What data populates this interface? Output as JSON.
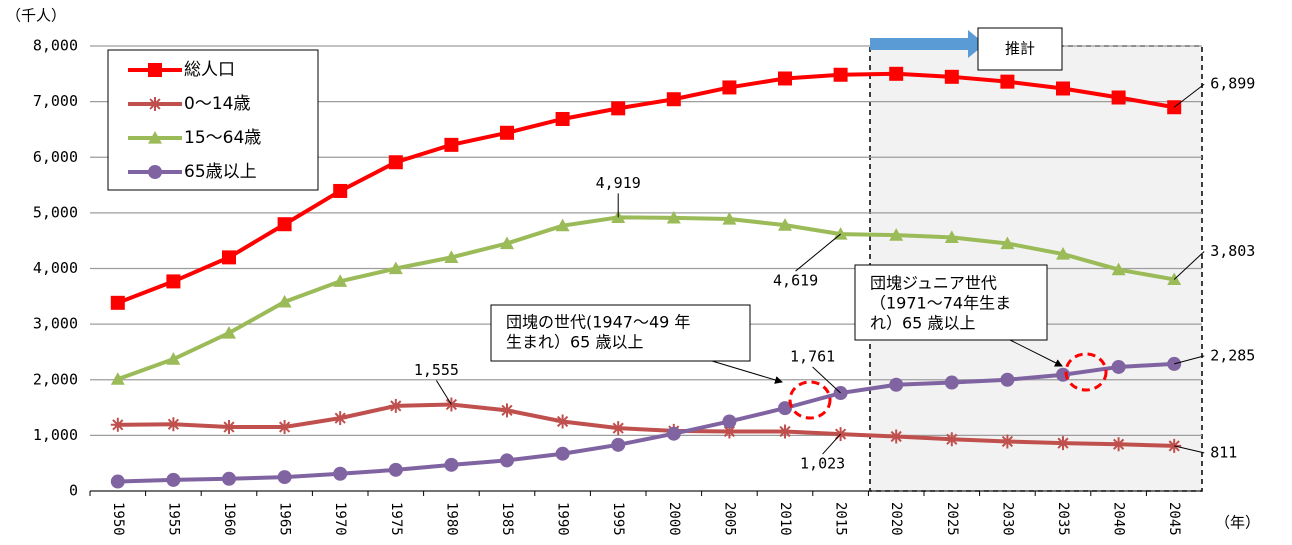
{
  "chart_data": {
    "type": "line",
    "y_label": "（千人）",
    "x_label": "（年）",
    "categories": [
      "1950",
      "1955",
      "1960",
      "1965",
      "1970",
      "1975",
      "1980",
      "1985",
      "1990",
      "1995",
      "2000",
      "2005",
      "2010",
      "2015",
      "2020",
      "2025",
      "2030",
      "2035",
      "2040",
      "2045"
    ],
    "ylim": [
      0,
      8000
    ],
    "yticks": [
      0,
      {
        "value": 1000,
        "label": "1,000"
      },
      {
        "value": 2000,
        "label": "2,000"
      },
      {
        "value": 3000,
        "label": "3,000"
      },
      {
        "value": 4000,
        "label": "4,000"
      },
      {
        "value": 5000,
        "label": "5,000"
      },
      {
        "value": 6000,
        "label": "6,000"
      },
      {
        "value": 7000,
        "label": "7,000"
      },
      {
        "value": 8000,
        "label": "8,000"
      }
    ],
    "grid": true,
    "legend": "upper left",
    "series": [
      {
        "name": "総人口",
        "color": "#ff0000",
        "marker": "square",
        "values": [
          3383,
          3768,
          4200,
          4796,
          5394,
          5910,
          6223,
          6440,
          6688,
          6879,
          7043,
          7255,
          7416,
          7483,
          7500,
          7446,
          7359,
          7236,
          7074,
          6899
        ],
        "value_labels": [
          null,
          null,
          null,
          null,
          null,
          null,
          null,
          null,
          null,
          null,
          null,
          null,
          null,
          null,
          null,
          null,
          null,
          null,
          null,
          "6,899"
        ]
      },
      {
        "name": "0～14歳",
        "color": "#c0504d",
        "marker": "asterisk",
        "values": [
          1190,
          1200,
          1150,
          1150,
          1310,
          1530,
          1555,
          1450,
          1250,
          1130,
          1080,
          1070,
          1070,
          1023,
          980,
          930,
          890,
          860,
          840,
          811
        ],
        "value_labels": [
          null,
          null,
          null,
          null,
          null,
          null,
          "1,555",
          null,
          null,
          null,
          null,
          null,
          null,
          "1,023",
          null,
          null,
          null,
          null,
          null,
          "811"
        ]
      },
      {
        "name": "15～64歳",
        "color": "#9bbb59",
        "marker": "triangle",
        "values": [
          2010,
          2370,
          2840,
          3400,
          3770,
          4000,
          4200,
          4450,
          4770,
          4919,
          4910,
          4890,
          4780,
          4619,
          4600,
          4560,
          4450,
          4260,
          3980,
          3803
        ],
        "value_labels": [
          null,
          null,
          null,
          null,
          null,
          null,
          null,
          null,
          null,
          "4,919",
          null,
          null,
          null,
          "4,619",
          null,
          null,
          null,
          null,
          null,
          "3,803"
        ]
      },
      {
        "name": "65歳以上",
        "color": "#8064a2",
        "marker": "circle",
        "values": [
          170,
          200,
          220,
          250,
          310,
          380,
          470,
          550,
          670,
          830,
          1030,
          1250,
          1490,
          1761,
          1910,
          1950,
          2000,
          2090,
          2230,
          2285
        ],
        "value_labels": [
          null,
          null,
          null,
          null,
          null,
          null,
          null,
          null,
          null,
          null,
          null,
          null,
          null,
          "1,761",
          null,
          null,
          null,
          null,
          null,
          "2,285"
        ]
      }
    ],
    "forecast_label": "推計",
    "annotations": [
      {
        "lines": [
          "団塊の世代(1947～49 年",
          "生まれ）65 歳以上"
        ]
      },
      {
        "lines": [
          "団塊ジュニア世代",
          "（1971～74年生ま",
          "れ）65 歳以上"
        ]
      }
    ]
  }
}
